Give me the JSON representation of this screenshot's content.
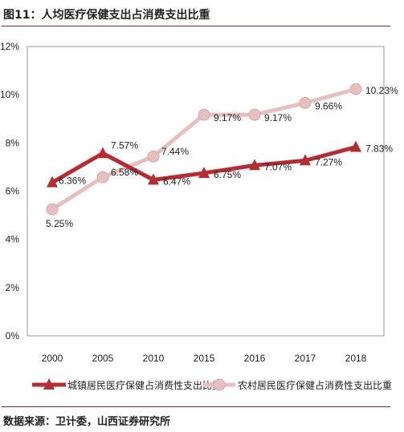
{
  "title": "图11：人均医疗保健支出占消费支出比重",
  "source": "数据来源：卫计委，山西证券研究所",
  "chart_data": {
    "type": "line",
    "title": "",
    "xlabel": "",
    "ylabel": "",
    "categories": [
      "2000",
      "2005",
      "2010",
      "2015",
      "2016",
      "2017",
      "2018"
    ],
    "ylim": [
      0,
      12
    ],
    "yticks": [
      0,
      2,
      4,
      6,
      8,
      10,
      12
    ],
    "ytick_labels": [
      "0%",
      "2%",
      "4%",
      "6%",
      "8%",
      "10%",
      "12%"
    ],
    "grid": false,
    "legend": "bottom",
    "series": [
      {
        "name": "城镇居民医疗保健占消费性支出比重",
        "values": [
          6.36,
          7.57,
          6.47,
          6.75,
          7.07,
          7.27,
          7.83
        ],
        "labels": [
          "6.36%",
          "7.57%",
          "6.47%",
          "6.75%",
          "7.07%",
          "7.27%",
          "7.83%"
        ],
        "color": "#b32e34",
        "marker": "triangle"
      },
      {
        "name": "农村居民医疗保健占消费性支出比重",
        "values": [
          5.25,
          6.58,
          7.44,
          9.17,
          9.17,
          9.66,
          10.23
        ],
        "labels": [
          "5.25%",
          "6.58%",
          "7.44%",
          "9.17%",
          "9.17%",
          "9.66%",
          "10.23%"
        ],
        "color": "#e6c0c1",
        "marker": "circle"
      }
    ]
  }
}
